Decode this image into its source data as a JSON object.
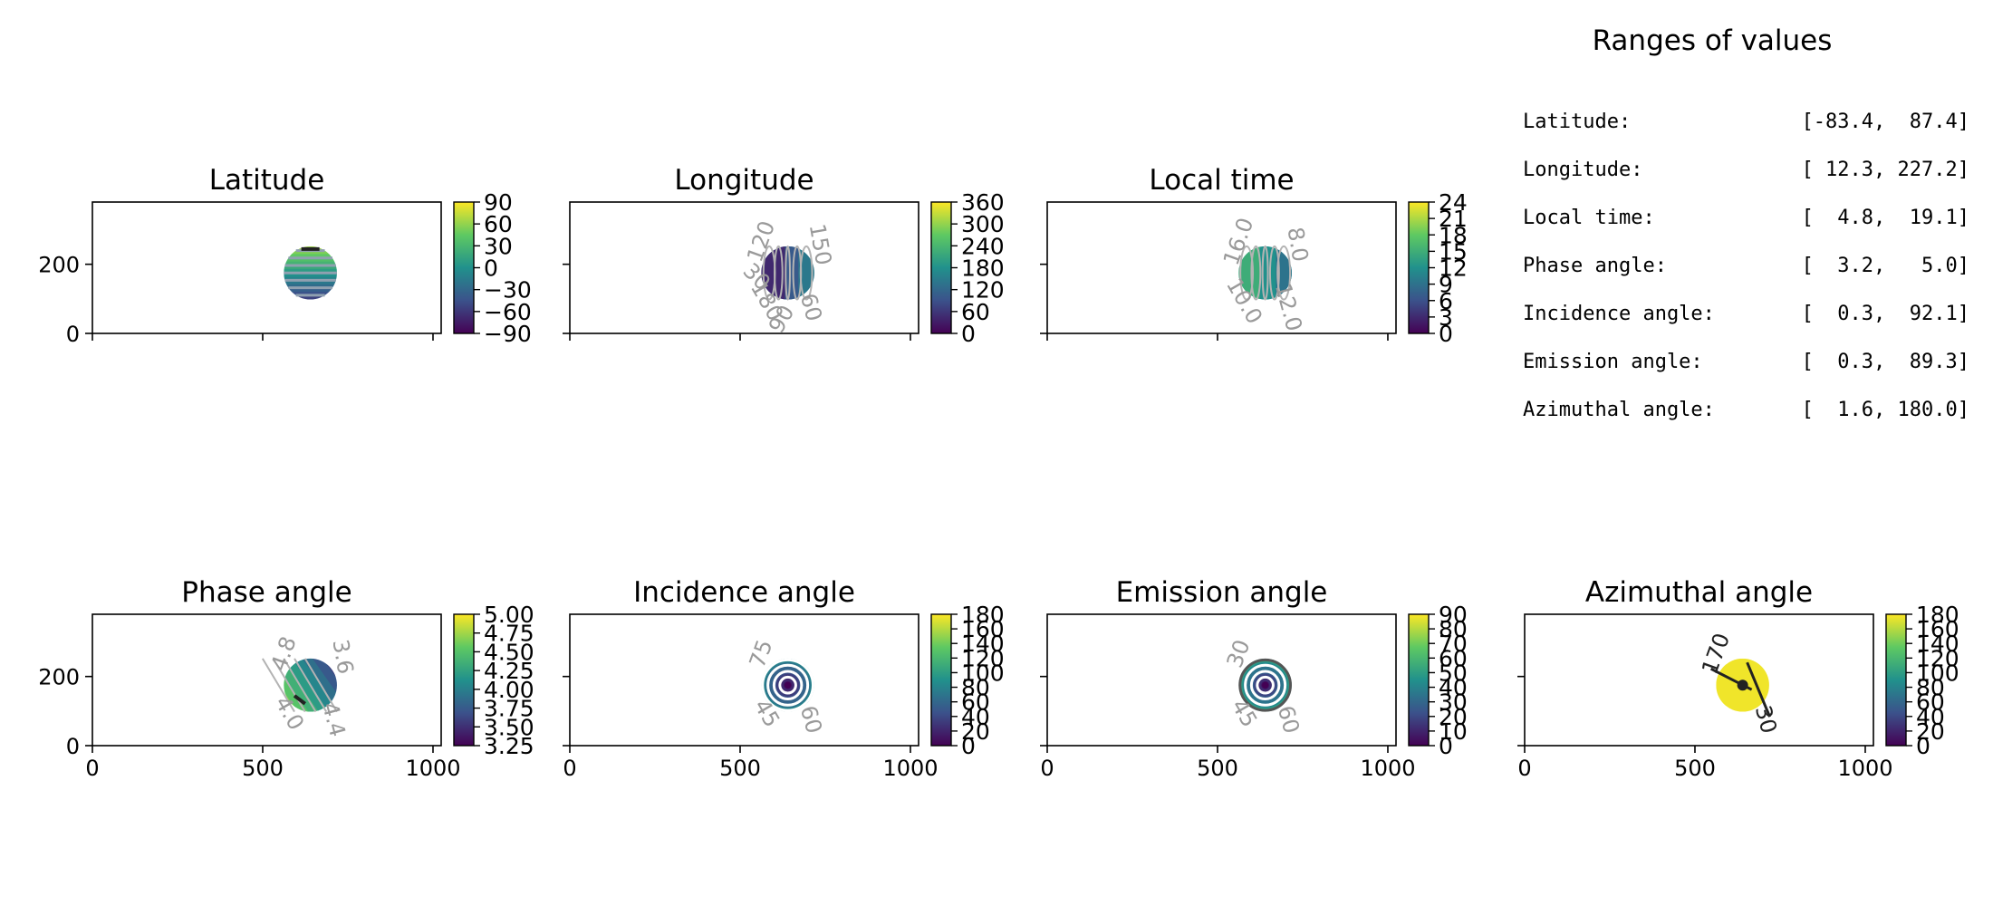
{
  "figure": {
    "ranges_title": "Ranges of values",
    "ranges": [
      {
        "label": "Latitude:",
        "value": "[-83.4,  87.4]"
      },
      {
        "label": "Longitude:",
        "value": "[ 12.3, 227.2]"
      },
      {
        "label": "Local time:",
        "value": "[  4.8,  19.1]"
      },
      {
        "label": "Phase angle:",
        "value": "[  3.2,   5.0]"
      },
      {
        "label": "Incidence angle:",
        "value": "[  0.3,  92.1]"
      },
      {
        "label": "Emission angle:",
        "value": "[  0.3,  89.3]"
      },
      {
        "label": "Azimuthal angle:",
        "value": "[  1.6, 180.0]"
      }
    ]
  },
  "colors": {
    "viridis": [
      "#440154",
      "#3b528b",
      "#21918c",
      "#5ec962",
      "#fde725"
    ],
    "contour_light": "#b3b3b3",
    "contour_dark": "#222222"
  },
  "chart_data": [
    {
      "type": "heatmap",
      "title": "Latitude",
      "xlim": [
        0,
        1024
      ],
      "ylim": [
        0,
        380
      ],
      "x_ticks": [],
      "y_ticks": [
        "0",
        "200"
      ],
      "disk": {
        "center_x": 640,
        "center_y": 175,
        "radius": 78
      },
      "colorbar": {
        "range": [
          -90,
          90
        ],
        "ticks": [
          "90",
          "60",
          "30",
          "0",
          "−30",
          "−60",
          "−90"
        ]
      },
      "contour_labels": []
    },
    {
      "type": "heatmap",
      "title": "Longitude",
      "xlim": [
        0,
        1024
      ],
      "ylim": [
        0,
        380
      ],
      "x_ticks": [],
      "y_ticks": [],
      "disk": {
        "center_x": 640,
        "center_y": 175,
        "radius": 78
      },
      "colorbar": {
        "range": [
          0,
          360
        ],
        "ticks": [
          "360",
          "300",
          "240",
          "180",
          "120",
          "60",
          "0"
        ]
      },
      "contour_labels": [
        "120",
        "60",
        "180",
        "150",
        "90",
        "30"
      ]
    },
    {
      "type": "heatmap",
      "title": "Local time",
      "xlim": [
        0,
        1024
      ],
      "ylim": [
        0,
        380
      ],
      "x_ticks": [],
      "y_ticks": [],
      "disk": {
        "center_x": 640,
        "center_y": 175,
        "radius": 78
      },
      "colorbar": {
        "range": [
          0,
          24
        ],
        "ticks": [
          "24",
          "21",
          "18",
          "15",
          "12",
          "9",
          "6",
          "3",
          "0"
        ]
      },
      "contour_labels": [
        "16.0",
        "12.0",
        "10.0",
        "8.0"
      ]
    },
    {
      "type": "heatmap",
      "title": "Phase angle",
      "xlim": [
        0,
        1024
      ],
      "ylim": [
        0,
        380
      ],
      "x_ticks": [
        "0",
        "500",
        "1000"
      ],
      "y_ticks": [
        "0",
        "200"
      ],
      "disk": {
        "center_x": 640,
        "center_y": 175,
        "radius": 78
      },
      "colorbar": {
        "range": [
          3.2,
          5.0
        ],
        "ticks": [
          "5.00",
          "4.75",
          "4.50",
          "4.25",
          "4.00",
          "3.75",
          "3.50",
          "3.25"
        ]
      },
      "contour_labels": [
        "4.8",
        "4.4",
        "4.0",
        "3.6"
      ]
    },
    {
      "type": "heatmap",
      "title": "Incidence angle",
      "xlim": [
        0,
        1024
      ],
      "ylim": [
        0,
        380
      ],
      "x_ticks": [
        "0",
        "500",
        "1000"
      ],
      "y_ticks": [],
      "disk": {
        "center_x": 640,
        "center_y": 175,
        "radius": 78
      },
      "colorbar": {
        "range": [
          0,
          180
        ],
        "ticks": [
          "180",
          "160",
          "140",
          "120",
          "100",
          "80",
          "60",
          "40",
          "20",
          "0"
        ]
      },
      "contour_labels": [
        "75",
        "60",
        "45"
      ]
    },
    {
      "type": "heatmap",
      "title": "Emission angle",
      "xlim": [
        0,
        1024
      ],
      "ylim": [
        0,
        380
      ],
      "x_ticks": [
        "0",
        "500",
        "1000"
      ],
      "y_ticks": [],
      "disk": {
        "center_x": 640,
        "center_y": 175,
        "radius": 78
      },
      "colorbar": {
        "range": [
          0,
          90
        ],
        "ticks": [
          "90",
          "80",
          "70",
          "60",
          "50",
          "40",
          "30",
          "20",
          "10",
          "0"
        ]
      },
      "contour_labels": [
        "30",
        "60",
        "45"
      ]
    },
    {
      "type": "heatmap",
      "title": "Azimuthal angle",
      "xlim": [
        0,
        1024
      ],
      "ylim": [
        0,
        380
      ],
      "x_ticks": [
        "0",
        "500",
        "1000"
      ],
      "y_ticks": [],
      "disk": {
        "center_x": 640,
        "center_y": 175,
        "radius": 78
      },
      "colorbar": {
        "range": [
          0,
          180
        ],
        "ticks": [
          "180",
          "160",
          "140",
          "120",
          "100",
          "80",
          "60",
          "40",
          "20",
          "0"
        ]
      },
      "contour_labels": [
        "170",
        "30"
      ]
    }
  ]
}
